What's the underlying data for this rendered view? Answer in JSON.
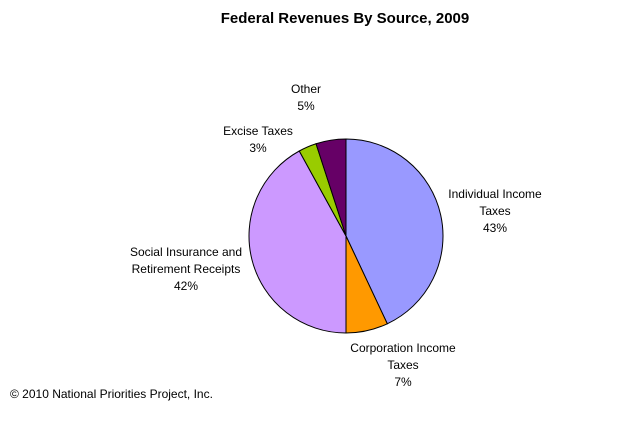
{
  "chart_data": {
    "type": "pie",
    "title": "Federal Revenues By Source, 2009",
    "slices": [
      {
        "label_lines": [
          "Individual Income",
          "Taxes"
        ],
        "percent_label": "43%",
        "value": 43,
        "color": "#9999ff"
      },
      {
        "label_lines": [
          "Corporation Income",
          "Taxes"
        ],
        "percent_label": "7%",
        "value": 7,
        "color": "#ff9900"
      },
      {
        "label_lines": [
          "Social Insurance and",
          "Retirement Receipts"
        ],
        "percent_label": "42%",
        "value": 42,
        "color": "#cc99ff"
      },
      {
        "label_lines": [
          "Excise Taxes"
        ],
        "percent_label": "3%",
        "value": 3,
        "color": "#99cc00"
      },
      {
        "label_lines": [
          "Other"
        ],
        "percent_label": "5%",
        "value": 5,
        "color": "#660066"
      }
    ]
  },
  "footer": {
    "copyright": "© 2010 National Priorities Project, Inc."
  }
}
